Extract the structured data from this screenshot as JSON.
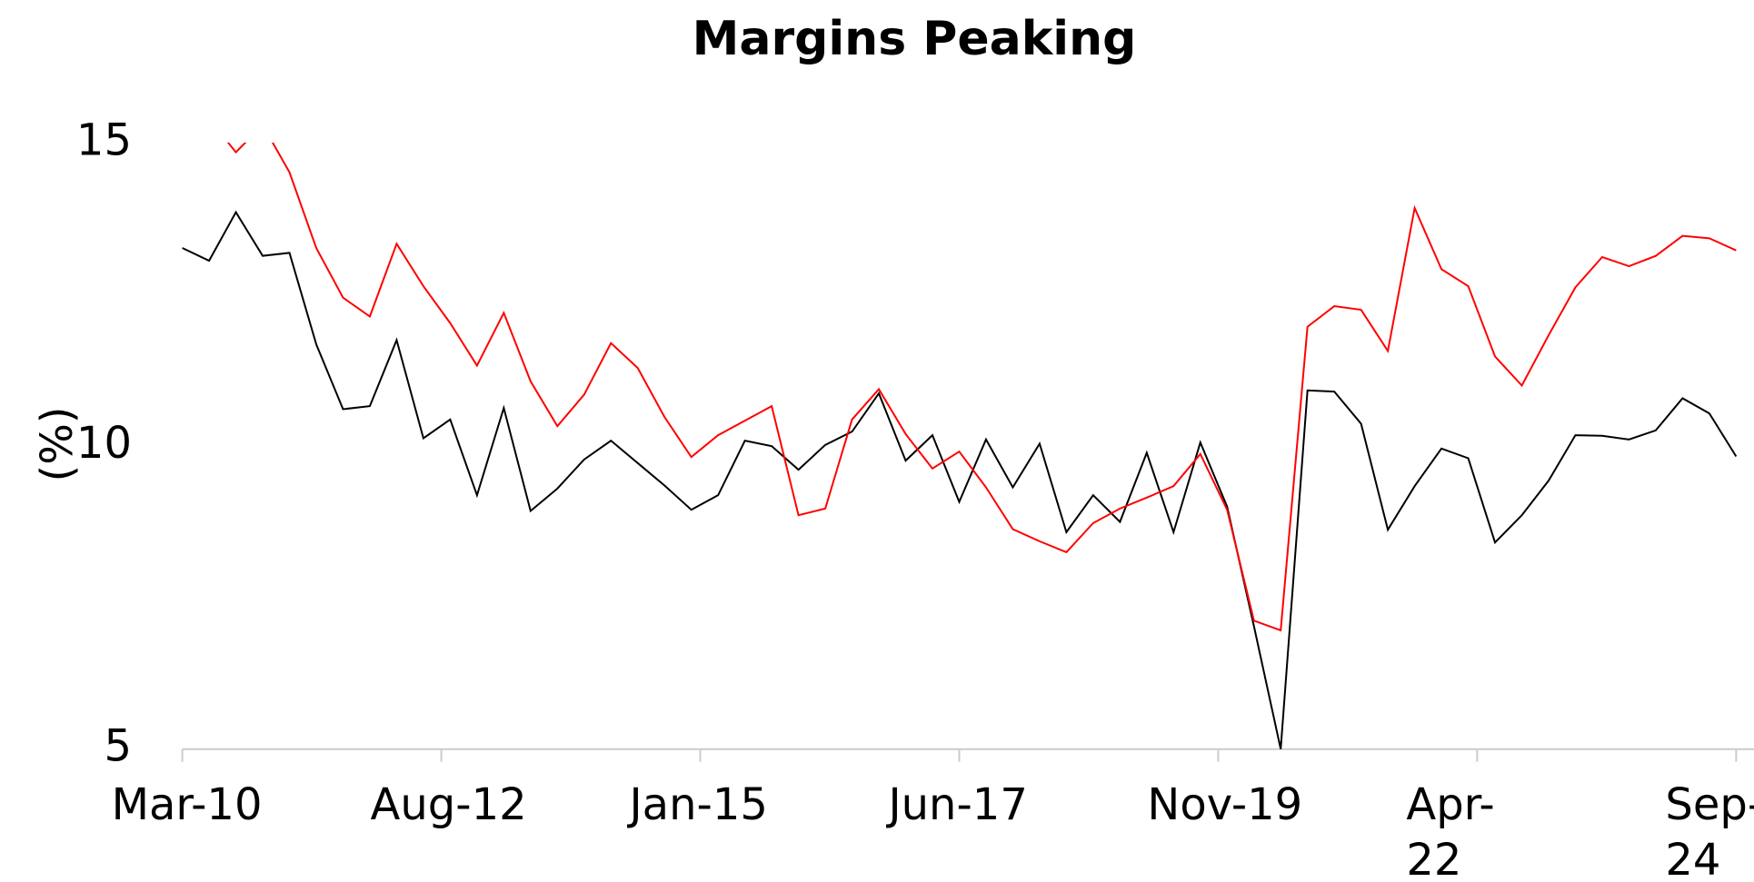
{
  "chart_data": {
    "type": "line",
    "title": "Margins Peaking",
    "y_label": "(%)",
    "x": [
      "2010-03",
      "2010-06",
      "2010-09",
      "2010-12",
      "2011-03",
      "2011-06",
      "2011-09",
      "2011-12",
      "2012-03",
      "2012-06",
      "2012-09",
      "2012-12",
      "2013-03",
      "2013-06",
      "2013-09",
      "2013-12",
      "2014-03",
      "2014-06",
      "2014-09",
      "2014-12",
      "2015-03",
      "2015-06",
      "2015-09",
      "2015-12",
      "2016-03",
      "2016-06",
      "2016-09",
      "2016-12",
      "2017-03",
      "2017-06",
      "2017-09",
      "2017-12",
      "2018-03",
      "2018-06",
      "2018-09",
      "2018-12",
      "2019-03",
      "2019-06",
      "2019-09",
      "2019-12",
      "2020-03",
      "2020-06",
      "2020-09",
      "2020-12",
      "2021-03",
      "2021-06",
      "2021-09",
      "2021-12",
      "2022-03",
      "2022-06",
      "2022-09",
      "2022-12",
      "2023-03",
      "2023-06",
      "2023-09",
      "2023-12",
      "2024-03",
      "2024-06",
      "2024-09"
    ],
    "series": [
      {
        "color": "#000000",
        "values": [
          13.27,
          13.06,
          13.86,
          13.14,
          13.19,
          11.68,
          10.61,
          10.66,
          11.75,
          10.13,
          10.44,
          9.19,
          10.63,
          8.93,
          9.3,
          9.78,
          10.09,
          9.72,
          9.35,
          8.95,
          9.19,
          10.09,
          10.0,
          9.61,
          10.02,
          10.24,
          10.87,
          9.76,
          10.18,
          9.08,
          10.11,
          9.32,
          10.04,
          8.58,
          9.19,
          8.75,
          9.89,
          8.58,
          10.06,
          9.0,
          7.03,
          5.0,
          10.92,
          10.9,
          10.37,
          8.62,
          9.34,
          9.96,
          9.8,
          8.41,
          8.86,
          9.43,
          10.18,
          10.17,
          10.11,
          10.26,
          10.79,
          10.54,
          9.83
        ]
      },
      {
        "color": "#ff0000",
        "values": [
          null,
          15.4,
          14.85,
          15.3,
          14.52,
          13.27,
          12.45,
          12.14,
          13.34,
          12.64,
          12.03,
          11.33,
          12.2,
          11.07,
          10.33,
          10.85,
          11.7,
          11.29,
          10.48,
          9.82,
          10.18,
          10.42,
          10.66,
          8.86,
          8.97,
          10.44,
          10.94,
          10.2,
          9.63,
          9.91,
          9.32,
          8.63,
          8.43,
          8.25,
          8.73,
          8.97,
          9.15,
          9.34,
          9.87,
          8.95,
          7.12,
          6.96,
          11.97,
          12.31,
          12.25,
          11.57,
          13.93,
          12.92,
          12.64,
          11.48,
          11.0,
          11.83,
          12.62,
          13.12,
          12.97,
          13.14,
          13.47,
          13.43,
          13.23
        ]
      }
    ],
    "xlim": [
      "2010-03",
      "2024-11"
    ],
    "xticks": [
      {
        "value": "2010-03",
        "label": "Mar-10"
      },
      {
        "value": "2012-08",
        "label": "Aug-12"
      },
      {
        "value": "2015-01",
        "label": "Jan-15"
      },
      {
        "value": "2017-06",
        "label": "Jun-17"
      },
      {
        "value": "2019-11",
        "label": "Nov-19"
      },
      {
        "value": "2022-04",
        "label": "Apr-22"
      },
      {
        "value": "2024-09",
        "label": "Sep-24"
      }
    ],
    "ylim": [
      5,
      15
    ],
    "yticks": [
      5,
      10,
      15
    ],
    "grid": false
  }
}
